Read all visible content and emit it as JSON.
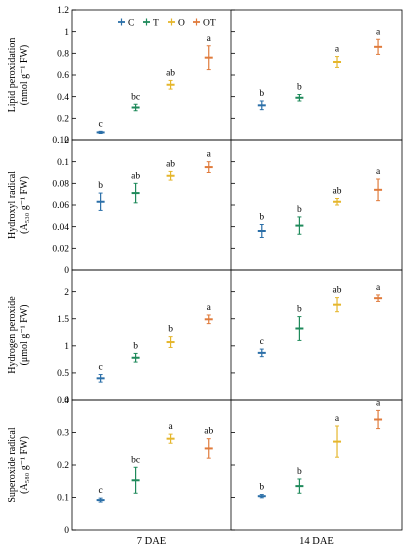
{
  "legend": {
    "entries": [
      {
        "label": "C",
        "color": "#2b6fa8"
      },
      {
        "label": "T",
        "color": "#1f8a5b"
      },
      {
        "label": "O",
        "color": "#e5b62c"
      },
      {
        "label": "OT",
        "color": "#e07b3c"
      }
    ]
  },
  "chart_data": [
    {
      "type": "scatter",
      "ylabel_line1": "Lipid peroxidation",
      "ylabel_line2": "(nmol g⁻¹ FW)",
      "ylim": [
        0,
        1.2
      ],
      "yticks": [
        "0",
        "0.2",
        "0.4",
        "0.6",
        "0.8",
        "1",
        "1.2"
      ],
      "panels": [
        {
          "x": "7 DAE",
          "points": [
            {
              "series": "C",
              "y": 0.07,
              "err": 0.01,
              "letter": "c"
            },
            {
              "series": "T",
              "y": 0.3,
              "err": 0.03,
              "letter": "bc"
            },
            {
              "series": "O",
              "y": 0.51,
              "err": 0.04,
              "letter": "ab"
            },
            {
              "series": "OT",
              "y": 0.76,
              "err": 0.11,
              "letter": "a"
            }
          ]
        },
        {
          "x": "14 DAE",
          "points": [
            {
              "series": "C",
              "y": 0.32,
              "err": 0.04,
              "letter": "b"
            },
            {
              "series": "T",
              "y": 0.39,
              "err": 0.03,
              "letter": "b"
            },
            {
              "series": "O",
              "y": 0.72,
              "err": 0.05,
              "letter": "a"
            },
            {
              "series": "OT",
              "y": 0.86,
              "err": 0.07,
              "letter": "a"
            }
          ]
        }
      ]
    },
    {
      "type": "scatter",
      "ylabel_line1": "Hydroxyl radical",
      "ylabel_line2": "(A₅₃₀ g⁻¹ FW)",
      "ylim": [
        0,
        0.12
      ],
      "yticks": [
        "0",
        "0.02",
        "0.04",
        "0.06",
        "0.08",
        "0.1",
        "0.12"
      ],
      "panels": [
        {
          "x": "7 DAE",
          "points": [
            {
              "series": "C",
              "y": 0.063,
              "err": 0.008,
              "letter": "b"
            },
            {
              "series": "T",
              "y": 0.071,
              "err": 0.009,
              "letter": "ab"
            },
            {
              "series": "O",
              "y": 0.087,
              "err": 0.004,
              "letter": "ab"
            },
            {
              "series": "OT",
              "y": 0.095,
              "err": 0.005,
              "letter": "a"
            }
          ]
        },
        {
          "x": "14 DAE",
          "points": [
            {
              "series": "C",
              "y": 0.036,
              "err": 0.006,
              "letter": "b"
            },
            {
              "series": "T",
              "y": 0.041,
              "err": 0.008,
              "letter": "b"
            },
            {
              "series": "O",
              "y": 0.063,
              "err": 0.003,
              "letter": "ab"
            },
            {
              "series": "OT",
              "y": 0.074,
              "err": 0.01,
              "letter": "a"
            }
          ]
        }
      ]
    },
    {
      "type": "scatter",
      "ylabel_line1": "Hydrogen peroxide",
      "ylabel_line2": "(μmol g⁻¹ FW)",
      "ylim": [
        0,
        2.4
      ],
      "yticks": [
        "0",
        "0.5",
        "1",
        "1.5",
        "2"
      ],
      "panels": [
        {
          "x": "7 DAE",
          "points": [
            {
              "series": "C",
              "y": 0.4,
              "err": 0.07,
              "letter": "c"
            },
            {
              "series": "T",
              "y": 0.78,
              "err": 0.08,
              "letter": "b"
            },
            {
              "series": "O",
              "y": 1.07,
              "err": 0.1,
              "letter": "b"
            },
            {
              "series": "OT",
              "y": 1.49,
              "err": 0.08,
              "letter": "a"
            }
          ]
        },
        {
          "x": "14 DAE",
          "points": [
            {
              "series": "C",
              "y": 0.87,
              "err": 0.07,
              "letter": "c"
            },
            {
              "series": "T",
              "y": 1.32,
              "err": 0.22,
              "letter": "b"
            },
            {
              "series": "O",
              "y": 1.76,
              "err": 0.13,
              "letter": "ab"
            },
            {
              "series": "OT",
              "y": 1.88,
              "err": 0.06,
              "letter": "a"
            }
          ]
        }
      ]
    },
    {
      "type": "scatter",
      "ylabel_line1": "Superoxide radical",
      "ylabel_line2": "(A₅₈₀ g⁻¹ FW)",
      "ylim": [
        0,
        0.4
      ],
      "yticks": [
        "0",
        "0.1",
        "0.2",
        "0.3",
        "0.4"
      ],
      "panels": [
        {
          "x": "7 DAE",
          "points": [
            {
              "series": "C",
              "y": 0.092,
              "err": 0.006,
              "letter": "c"
            },
            {
              "series": "T",
              "y": 0.153,
              "err": 0.04,
              "letter": "bc"
            },
            {
              "series": "O",
              "y": 0.281,
              "err": 0.014,
              "letter": "a"
            },
            {
              "series": "OT",
              "y": 0.251,
              "err": 0.03,
              "letter": "ab"
            }
          ]
        },
        {
          "x": "14 DAE",
          "points": [
            {
              "series": "C",
              "y": 0.104,
              "err": 0.005,
              "letter": "b"
            },
            {
              "series": "T",
              "y": 0.135,
              "err": 0.022,
              "letter": "b"
            },
            {
              "series": "O",
              "y": 0.272,
              "err": 0.048,
              "letter": "a"
            },
            {
              "series": "OT",
              "y": 0.34,
              "err": 0.028,
              "letter": "a"
            }
          ]
        }
      ]
    }
  ]
}
